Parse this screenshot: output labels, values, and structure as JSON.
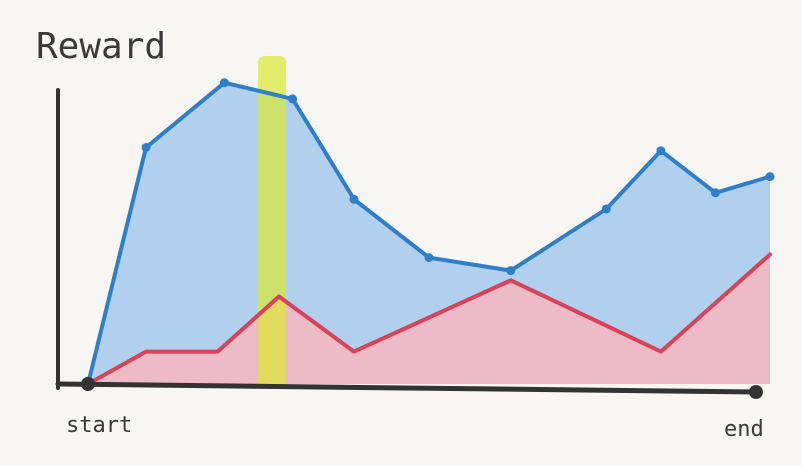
{
  "chart_data": {
    "type": "area",
    "title": "",
    "ylabel": "Reward",
    "xlabel": "",
    "x_tick_labels": [
      "start",
      "end"
    ],
    "xlim": [
      0,
      10
    ],
    "ylim": [
      0,
      10
    ],
    "grid": false,
    "legend": "none",
    "highlight": {
      "x": 2.7,
      "color": "#d9e830"
    },
    "series": [
      {
        "color": "#2f7fc8",
        "fill": "#a9ccee",
        "x": [
          0,
          0.85,
          2.0,
          3.0,
          3.9,
          5.0,
          6.2,
          7.6,
          8.4,
          9.2,
          10.0
        ],
        "y": [
          0,
          7.3,
          9.3,
          8.8,
          5.7,
          3.9,
          3.5,
          5.4,
          7.2,
          5.9,
          6.4
        ]
      },
      {
        "color": "#d9425a",
        "fill": "#f1b9c2",
        "x": [
          0,
          0.85,
          1.9,
          2.8,
          3.9,
          6.2,
          8.4,
          10.0
        ],
        "y": [
          0,
          1.0,
          1.0,
          2.7,
          1.0,
          3.2,
          1.0,
          4.0
        ]
      }
    ]
  }
}
